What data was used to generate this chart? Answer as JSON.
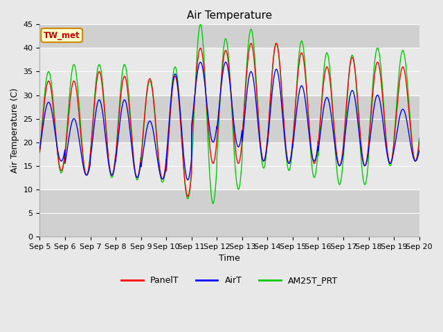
{
  "title": "Air Temperature",
  "ylabel": "Air Temperature (C)",
  "xlabel": "Time",
  "annotation": "TW_met",
  "ylim": [
    0,
    45
  ],
  "yticks": [
    0,
    5,
    10,
    15,
    20,
    25,
    30,
    35,
    40,
    45
  ],
  "xtick_labels": [
    "Sep 5",
    "Sep 6",
    "Sep 7",
    "Sep 8",
    "Sep 9",
    "Sep 10",
    "Sep 11",
    "Sep 12",
    "Sep 13",
    "Sep 14",
    "Sep 15",
    "Sep 16",
    "Sep 17",
    "Sep 18",
    "Sep 19",
    "Sep 20"
  ],
  "band_colors": [
    "#d0d0d0",
    "#e8e8e8"
  ],
  "figure_bg": "#e8e8e8",
  "grid_color": "#ffffff",
  "title_fontsize": 11,
  "label_fontsize": 9,
  "tick_fontsize": 8,
  "annotation_facecolor": "#ffffcc",
  "annotation_edgecolor": "#cc8800",
  "annotation_textcolor": "#cc0000",
  "panel_maxes": [
    33,
    33,
    35,
    34,
    33.5,
    34,
    40,
    39.5,
    41,
    41,
    39,
    36,
    38,
    37,
    36
  ],
  "panel_mins": [
    14,
    13,
    13,
    12.5,
    12.2,
    8.5,
    15.5,
    15.5,
    16,
    15.5,
    15.5,
    15,
    15,
    15.5,
    16
  ],
  "air_maxes": [
    28.5,
    25,
    29,
    29,
    24.5,
    34.5,
    37,
    37,
    35,
    35.5,
    32,
    29.5,
    31,
    30,
    27
  ],
  "air_mins": [
    16,
    13,
    13,
    12.5,
    12.2,
    12,
    20,
    19,
    16,
    15.5,
    16,
    15,
    15,
    15.5,
    16
  ],
  "am25_maxes": [
    35,
    36.5,
    36.5,
    36.5,
    33,
    36,
    45,
    42,
    44,
    41,
    41.5,
    39,
    38.5,
    40,
    39.5
  ],
  "am25_mins": [
    13.5,
    13,
    12.5,
    12,
    11.5,
    8,
    7,
    10,
    14.5,
    14,
    12.5,
    11,
    11,
    15,
    16
  ],
  "phase": 0.1
}
